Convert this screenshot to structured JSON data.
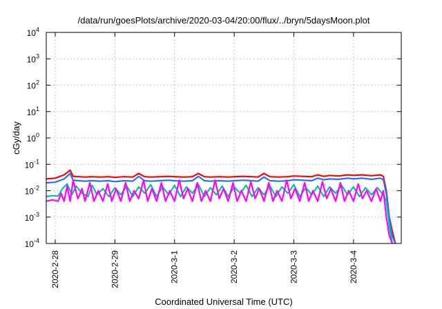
{
  "chart_data": {
    "type": "line",
    "title": "/data/run/goesPlots/archive/2020-03-04/20:00/flux/../bryn/5daysMoon.plot",
    "xlabel": "Coordinated Universal Time (UTC)",
    "ylabel": "cGy/day",
    "yscale": "log",
    "ylim": [
      0.0001,
      10000
    ],
    "xlim": [
      -0.15,
      5.8
    ],
    "grid": true,
    "legend": "none",
    "x_ticks": [
      {
        "x": 0,
        "label": "2020-2-28"
      },
      {
        "x": 1,
        "label": "2020-2-29"
      },
      {
        "x": 2,
        "label": "2020-3-1"
      },
      {
        "x": 3,
        "label": "2020-3-2"
      },
      {
        "x": 4,
        "label": "2020-3-3"
      },
      {
        "x": 5,
        "label": "2020-3-4"
      }
    ],
    "y_ticks": [
      {
        "value": 0.0001,
        "base": "10",
        "exp": "-4"
      },
      {
        "value": 0.001,
        "base": "10",
        "exp": "-3"
      },
      {
        "value": 0.01,
        "base": "10",
        "exp": "-2"
      },
      {
        "value": 0.1,
        "base": "10",
        "exp": "-1"
      },
      {
        "value": 1,
        "base": "10",
        "exp": "0"
      },
      {
        "value": 10,
        "base": "10",
        "exp": "1"
      },
      {
        "value": 100,
        "base": "10",
        "exp": "2"
      },
      {
        "value": 1000,
        "base": "10",
        "exp": "3"
      },
      {
        "value": 10000,
        "base": "10",
        "exp": "4"
      }
    ],
    "series": [
      {
        "color": "#ff0000",
        "x": [
          -0.15,
          0.0,
          0.15,
          0.25,
          0.3,
          0.4,
          0.5,
          0.6,
          0.75,
          0.9,
          1.0,
          1.15,
          1.3,
          1.4,
          1.5,
          1.6,
          1.75,
          1.9,
          2.0,
          2.15,
          2.3,
          2.4,
          2.5,
          2.6,
          2.75,
          2.9,
          3.0,
          3.15,
          3.3,
          3.4,
          3.5,
          3.6,
          3.75,
          3.9,
          4.0,
          4.15,
          4.3,
          4.4,
          4.5,
          4.6,
          4.75,
          4.9,
          5.0,
          5.15,
          5.3,
          5.45,
          5.5,
          5.55,
          5.6,
          5.65,
          5.7
        ],
        "y": [
          0.028,
          0.03,
          0.04,
          0.06,
          0.035,
          0.034,
          0.033,
          0.034,
          0.033,
          0.034,
          0.032,
          0.034,
          0.033,
          0.045,
          0.034,
          0.033,
          0.034,
          0.035,
          0.034,
          0.033,
          0.034,
          0.045,
          0.034,
          0.033,
          0.034,
          0.033,
          0.034,
          0.035,
          0.034,
          0.033,
          0.045,
          0.034,
          0.033,
          0.034,
          0.036,
          0.035,
          0.034,
          0.04,
          0.035,
          0.038,
          0.036,
          0.04,
          0.038,
          0.04,
          0.037,
          0.04,
          0.035,
          0.01,
          0.001,
          0.0003,
          0.0001
        ]
      },
      {
        "color": "#2070ff",
        "x": [
          -0.15,
          0.0,
          0.15,
          0.25,
          0.3,
          0.4,
          0.5,
          0.6,
          0.75,
          0.9,
          1.0,
          1.15,
          1.3,
          1.4,
          1.5,
          1.6,
          1.75,
          1.9,
          2.0,
          2.15,
          2.3,
          2.4,
          2.5,
          2.6,
          2.75,
          2.9,
          3.0,
          3.15,
          3.3,
          3.4,
          3.5,
          3.6,
          3.75,
          3.9,
          4.0,
          4.15,
          4.3,
          4.4,
          4.5,
          4.6,
          4.75,
          4.9,
          5.0,
          5.15,
          5.3,
          5.45,
          5.5,
          5.55,
          5.6,
          5.65,
          5.7
        ],
        "y": [
          0.02,
          0.021,
          0.028,
          0.045,
          0.025,
          0.024,
          0.023,
          0.024,
          0.023,
          0.024,
          0.022,
          0.024,
          0.023,
          0.035,
          0.024,
          0.023,
          0.024,
          0.025,
          0.024,
          0.023,
          0.024,
          0.035,
          0.024,
          0.023,
          0.024,
          0.023,
          0.024,
          0.025,
          0.024,
          0.023,
          0.033,
          0.024,
          0.023,
          0.024,
          0.026,
          0.025,
          0.024,
          0.03,
          0.026,
          0.028,
          0.027,
          0.03,
          0.028,
          0.03,
          0.027,
          0.03,
          0.026,
          0.008,
          0.0009,
          0.0002,
          0.0001
        ]
      },
      {
        "color": "#00c0a0",
        "x": [
          -0.15,
          -0.05,
          0.05,
          0.12,
          0.2,
          0.28,
          0.35,
          0.45,
          0.55,
          0.62,
          0.7,
          0.8,
          0.9,
          1.0,
          1.1,
          1.2,
          1.3,
          1.4,
          1.5,
          1.6,
          1.7,
          1.8,
          1.9,
          2.0,
          2.1,
          2.2,
          2.3,
          2.4,
          2.5,
          2.6,
          2.7,
          2.8,
          2.9,
          3.0,
          3.1,
          3.2,
          3.3,
          3.4,
          3.5,
          3.6,
          3.7,
          3.8,
          3.9,
          4.0,
          4.1,
          4.2,
          4.3,
          4.4,
          4.5,
          4.6,
          4.7,
          4.8,
          4.9,
          5.0,
          5.1,
          5.2,
          5.3,
          5.4,
          5.5,
          5.55,
          5.6,
          5.65
        ],
        "y": [
          0.006,
          0.0065,
          0.0062,
          0.012,
          0.018,
          0.007,
          0.015,
          0.008,
          0.006,
          0.016,
          0.007,
          0.012,
          0.006,
          0.013,
          0.007,
          0.015,
          0.006,
          0.014,
          0.008,
          0.017,
          0.006,
          0.014,
          0.007,
          0.016,
          0.006,
          0.014,
          0.008,
          0.017,
          0.006,
          0.013,
          0.007,
          0.015,
          0.006,
          0.014,
          0.008,
          0.016,
          0.006,
          0.013,
          0.007,
          0.015,
          0.006,
          0.014,
          0.008,
          0.017,
          0.006,
          0.013,
          0.007,
          0.015,
          0.006,
          0.014,
          0.008,
          0.016,
          0.007,
          0.014,
          0.006,
          0.013,
          0.007,
          0.013,
          0.007,
          0.004,
          0.0005,
          0.0001
        ]
      },
      {
        "color": "#ff00ff",
        "x": [
          -0.15,
          -0.05,
          0.05,
          0.1,
          0.15,
          0.2,
          0.25,
          0.3,
          0.38,
          0.45,
          0.5,
          0.58,
          0.65,
          0.72,
          0.8,
          0.88,
          0.95,
          1.02,
          1.1,
          1.18,
          1.25,
          1.32,
          1.4,
          1.48,
          1.55,
          1.62,
          1.7,
          1.78,
          1.85,
          1.92,
          2.0,
          2.08,
          2.15,
          2.22,
          2.3,
          2.38,
          2.45,
          2.52,
          2.6,
          2.68,
          2.75,
          2.82,
          2.9,
          2.98,
          3.05,
          3.12,
          3.2,
          3.28,
          3.35,
          3.42,
          3.5,
          3.58,
          3.65,
          3.72,
          3.8,
          3.88,
          3.95,
          4.02,
          4.1,
          4.18,
          4.25,
          4.32,
          4.4,
          4.48,
          4.55,
          4.62,
          4.7,
          4.78,
          4.85,
          4.92,
          5.0,
          5.08,
          5.15,
          5.22,
          5.3,
          5.38,
          5.45,
          5.5,
          5.55,
          5.6,
          5.65
        ],
        "y": [
          0.004,
          0.0045,
          0.004,
          0.008,
          0.004,
          0.015,
          0.004,
          0.025,
          0.005,
          0.012,
          0.004,
          0.02,
          0.004,
          0.01,
          0.004,
          0.018,
          0.004,
          0.012,
          0.004,
          0.02,
          0.004,
          0.01,
          0.005,
          0.025,
          0.004,
          0.012,
          0.004,
          0.02,
          0.004,
          0.01,
          0.004,
          0.025,
          0.005,
          0.012,
          0.004,
          0.02,
          0.004,
          0.01,
          0.004,
          0.025,
          0.005,
          0.012,
          0.004,
          0.02,
          0.004,
          0.01,
          0.004,
          0.022,
          0.005,
          0.012,
          0.004,
          0.02,
          0.004,
          0.01,
          0.004,
          0.025,
          0.005,
          0.012,
          0.004,
          0.02,
          0.004,
          0.01,
          0.004,
          0.022,
          0.005,
          0.012,
          0.004,
          0.02,
          0.004,
          0.01,
          0.004,
          0.018,
          0.005,
          0.01,
          0.004,
          0.012,
          0.004,
          0.01,
          0.001,
          0.0002,
          0.0001
        ]
      }
    ]
  }
}
